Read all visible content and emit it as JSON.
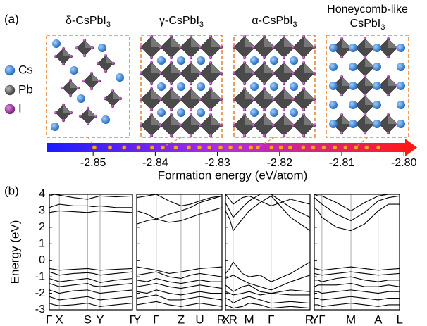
{
  "panel_a": {
    "label": "(a)",
    "structures": [
      {
        "name": "δ-CsPbI",
        "subscript": "3",
        "energy": -2.8498
      },
      {
        "name": "γ-CsPbI",
        "subscript": "3",
        "energy": -2.8388
      },
      {
        "name": "α-CsPbI",
        "subscript": "3",
        "energy": -2.8235
      },
      {
        "name_line1": "Honeycomb-like",
        "name": "CsPbI",
        "subscript": "3",
        "energy": -2.8077
      }
    ],
    "legend": [
      {
        "name": "Cs",
        "color": "#2f7fd6"
      },
      {
        "name": "Pb",
        "color": "#555555"
      },
      {
        "name": "I",
        "color": "#8e2a8e"
      }
    ],
    "energy_axis": {
      "label": "Formation energy (eV/atom)",
      "xlim": [
        -2.8575,
        -2.7998
      ],
      "xticks": [
        -2.85,
        -2.84,
        -2.83,
        -2.82,
        -2.81,
        {
          "value": -2.8,
          "label": "-2.80"
        }
      ],
      "point_color": "#f5a623",
      "points": [
        -2.8498,
        -2.8473,
        -2.845,
        -2.8427,
        -2.8405,
        -2.8388,
        -2.8367,
        -2.8346,
        -2.8329,
        -2.8313,
        -2.8295,
        -2.8279,
        -2.8263,
        -2.8246,
        -2.8235,
        -2.8213,
        -2.8198,
        -2.8183,
        -2.8162,
        -2.8146,
        -2.8129,
        -2.8111,
        -2.8094,
        -2.8077,
        -2.806,
        -2.8041
      ]
    }
  },
  "panel_b": {
    "label": "(b)",
    "ylabel": "Energy (eV)",
    "ylim": [
      -3,
      4
    ],
    "yticks": [
      -3,
      -2,
      -1,
      0,
      1,
      2,
      3,
      4
    ],
    "xlim": [
      0,
      1
    ],
    "line_color": "#000000",
    "panels": [
      {
        "kpoints": [
          "Γ",
          "X",
          "S",
          "Y",
          "Γ"
        ],
        "kpositions": [
          0,
          0.12,
          0.46,
          0.61,
          1
        ],
        "x": [
          0,
          0.06,
          0.12,
          0.29,
          0.46,
          0.53,
          0.61,
          0.8,
          1
        ],
        "bands": [
          [
            2.9,
            2.95,
            3.0,
            2.95,
            2.9,
            2.95,
            3.0,
            2.95,
            2.9
          ],
          [
            3.2,
            3.3,
            3.4,
            3.3,
            3.3,
            3.25,
            3.3,
            3.2,
            3.2
          ],
          [
            3.9,
            4.0,
            3.95,
            3.8,
            3.7,
            3.8,
            3.9,
            3.85,
            3.9
          ],
          [
            -0.5,
            -0.55,
            -0.6,
            -0.55,
            -0.5,
            -0.55,
            -0.6,
            -0.55,
            -0.5
          ],
          [
            -0.7,
            -0.8,
            -0.9,
            -0.8,
            -0.75,
            -0.8,
            -0.9,
            -0.8,
            -0.7
          ],
          [
            -1.1,
            -1.2,
            -1.3,
            -1.2,
            -1.1,
            -1.2,
            -1.35,
            -1.2,
            -1.1
          ],
          [
            -1.4,
            -1.5,
            -1.6,
            -1.5,
            -1.4,
            -1.55,
            -1.6,
            -1.5,
            -1.4
          ],
          [
            -1.8,
            -1.9,
            -2.0,
            -1.85,
            -1.8,
            -1.9,
            -2.0,
            -1.9,
            -1.8
          ],
          [
            -2.2,
            -2.3,
            -2.4,
            -2.3,
            -2.2,
            -2.3,
            -2.4,
            -2.3,
            -2.2
          ],
          [
            -2.6,
            -2.7,
            -2.75,
            -2.7,
            -2.6,
            -2.7,
            -2.8,
            -2.7,
            -2.6
          ]
        ]
      },
      {
        "kpoints": [
          "Y",
          "Γ",
          "Z",
          "U",
          "R"
        ],
        "kpositions": [
          0,
          0.23,
          0.52,
          0.74,
          1
        ],
        "x": [
          0,
          0.12,
          0.23,
          0.38,
          0.52,
          0.63,
          0.74,
          0.87,
          1
        ],
        "bands": [
          [
            2.2,
            2.4,
            2.5,
            2.8,
            3.0,
            3.2,
            3.5,
            3.7,
            3.9
          ],
          [
            3.0,
            2.8,
            2.5,
            2.3,
            2.4,
            2.6,
            2.8,
            3.0,
            3.2
          ],
          [
            3.8,
            3.9,
            4.0,
            3.6,
            3.3,
            3.4,
            3.6,
            3.8,
            3.9
          ],
          [
            -0.4,
            -0.5,
            -0.6,
            -0.8,
            -0.7,
            -0.6,
            -0.5,
            -0.45,
            -0.4
          ],
          [
            -0.9,
            -0.8,
            -0.7,
            -1.0,
            -1.1,
            -0.9,
            -0.8,
            -0.9,
            -1.0
          ],
          [
            -1.2,
            -1.3,
            -1.1,
            -1.3,
            -1.4,
            -1.3,
            -1.2,
            -1.3,
            -1.3
          ],
          [
            -1.6,
            -1.5,
            -1.4,
            -1.6,
            -1.7,
            -1.6,
            -1.5,
            -1.6,
            -1.7
          ],
          [
            -1.9,
            -2.0,
            -1.8,
            -2.0,
            -2.1,
            -2.0,
            -1.9,
            -2.0,
            -2.0
          ],
          [
            -2.3,
            -2.2,
            -2.1,
            -2.4,
            -2.4,
            -2.3,
            -2.2,
            -2.3,
            -2.4
          ],
          [
            -2.7,
            -2.6,
            -2.5,
            -2.7,
            -2.8,
            -2.7,
            -2.6,
            -2.7,
            -2.8
          ]
        ]
      },
      {
        "kpoints": [
          "X",
          "R",
          "M",
          "Γ",
          "R"
        ],
        "kpositions": [
          0,
          0.09,
          0.28,
          0.54,
          1
        ],
        "x": [
          0,
          0.05,
          0.09,
          0.2,
          0.28,
          0.41,
          0.54,
          0.77,
          1
        ],
        "bands": [
          [
            3.0,
            2.5,
            1.8,
            2.5,
            3.0,
            3.5,
            3.9,
            2.6,
            1.8
          ],
          [
            3.5,
            3.0,
            2.6,
            3.2,
            3.6,
            4.0,
            4.0,
            3.2,
            2.6
          ],
          [
            4.0,
            3.7,
            3.4,
            3.8,
            3.9,
            3.6,
            3.3,
            3.7,
            3.4
          ],
          [
            -0.8,
            -0.5,
            -0.1,
            -0.8,
            -1.0,
            -0.9,
            -1.3,
            -0.8,
            -0.1
          ],
          [
            -1.1,
            -1.0,
            -0.9,
            -1.2,
            -1.4,
            -1.6,
            -1.8,
            -1.3,
            -0.9
          ],
          [
            -1.5,
            -1.7,
            -1.9,
            -1.6,
            -1.5,
            -1.9,
            -2.0,
            -1.8,
            -1.9
          ],
          [
            -1.9,
            -2.0,
            -2.1,
            -2.0,
            -1.9,
            -2.1,
            -2.0,
            -2.1,
            -2.1
          ],
          [
            -2.3,
            -2.4,
            -2.6,
            -2.3,
            -2.2,
            -2.4,
            -2.6,
            -2.5,
            -2.6
          ],
          [
            -2.7,
            -2.8,
            -2.9,
            -2.8,
            -2.6,
            -2.7,
            -2.9,
            -2.8,
            -2.9
          ]
        ]
      },
      {
        "kpoints": [
          "Y",
          "Γ",
          "M",
          "A",
          "L"
        ],
        "kpositions": [
          0,
          0.09,
          0.43,
          0.75,
          1
        ],
        "x": [
          0,
          0.045,
          0.09,
          0.26,
          0.43,
          0.59,
          0.75,
          0.87,
          1
        ],
        "bands": [
          [
            3.2,
            3.0,
            2.6,
            2.0,
            1.8,
            2.2,
            3.0,
            3.4,
            3.4
          ],
          [
            3.8,
            3.6,
            3.4,
            2.8,
            2.4,
            2.9,
            3.6,
            3.8,
            3.9
          ],
          [
            4.0,
            3.9,
            3.9,
            3.5,
            3.0,
            3.5,
            3.9,
            4.0,
            4.0
          ],
          [
            -0.5,
            -0.55,
            -0.6,
            -0.5,
            -0.4,
            -0.5,
            -0.6,
            -0.55,
            -0.5
          ],
          [
            -0.8,
            -0.85,
            -0.9,
            -0.8,
            -0.7,
            -0.8,
            -0.9,
            -0.85,
            -0.8
          ],
          [
            -1.2,
            -1.2,
            -1.3,
            -1.1,
            -1.0,
            -1.2,
            -1.3,
            -1.2,
            -1.2
          ],
          [
            -1.6,
            -1.5,
            -1.5,
            -1.5,
            -1.4,
            -1.6,
            -1.6,
            -1.5,
            -1.6
          ],
          [
            -1.9,
            -1.9,
            -2.0,
            -1.9,
            -1.8,
            -1.9,
            -2.0,
            -1.9,
            -1.9
          ],
          [
            -2.3,
            -2.3,
            -2.4,
            -2.3,
            -2.2,
            -2.3,
            -2.4,
            -2.3,
            -2.3
          ],
          [
            -2.7,
            -2.7,
            -2.8,
            -2.7,
            -2.6,
            -2.7,
            -2.8,
            -2.7,
            -2.7
          ]
        ]
      }
    ]
  }
}
